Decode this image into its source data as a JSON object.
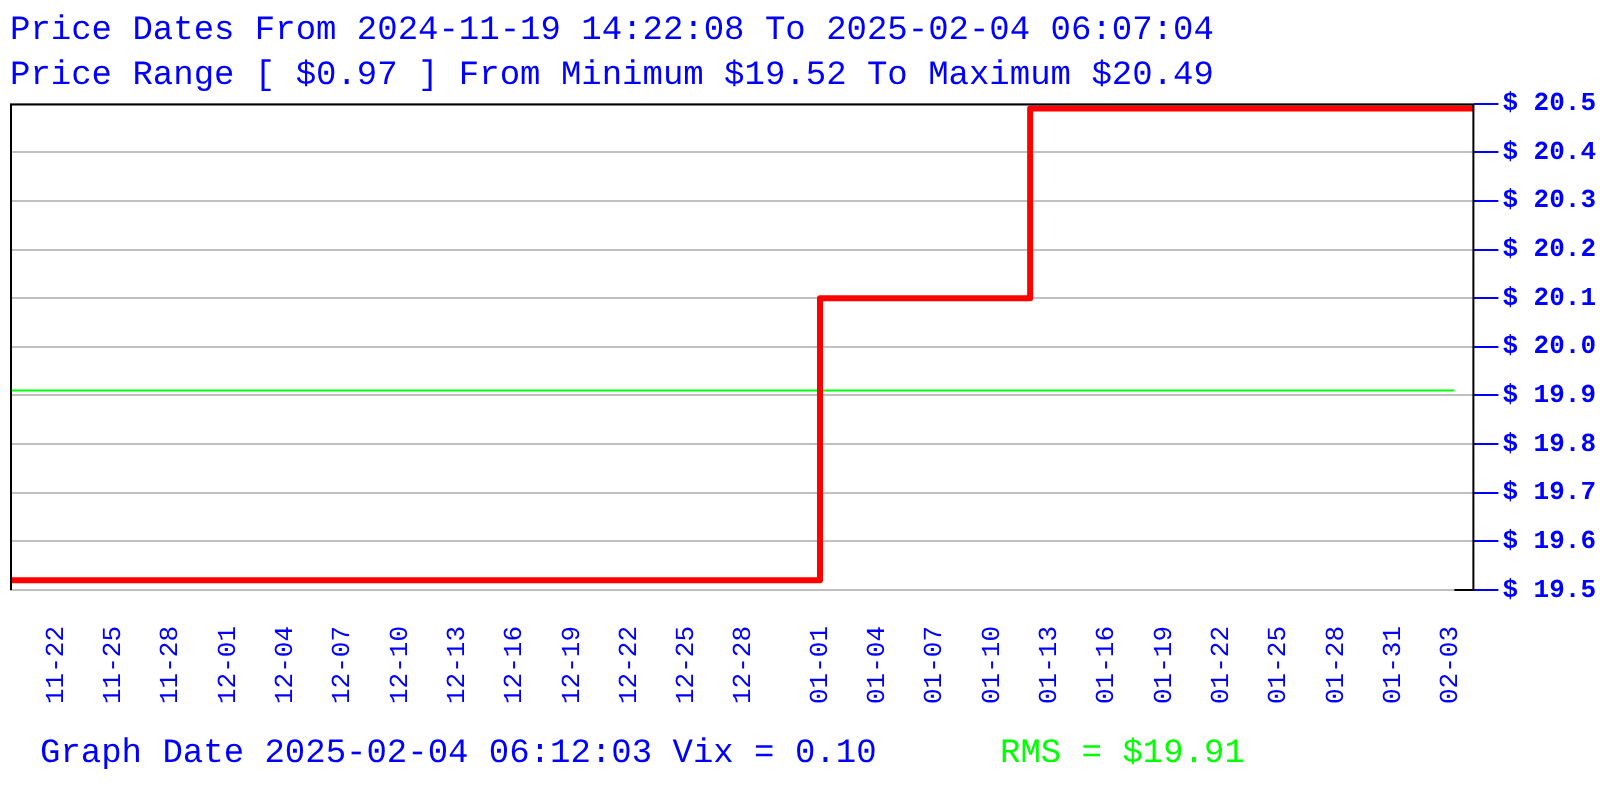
{
  "chart_data": {
    "type": "step",
    "title": "Price Dates From 2024-11-19 14:22:08 To 2025-02-04 06:07:04",
    "subtitle": "Price Range [ $0.97 ] From Minimum $19.52 To Maximum $20.49",
    "x": [
      "2024-11-19T14:22:08",
      "2025-01-01",
      "2025-01-12",
      "2025-02-04T06:07:04"
    ],
    "series": [
      {
        "color": "#ff0000",
        "values": [
          19.52,
          20.1,
          20.49,
          20.49
        ]
      }
    ],
    "xlim": [
      "2024-11-19T14:22:08",
      "2025-02-04T06:07:04"
    ],
    "xticks": [
      {
        "value": "2024-11-22",
        "label": "11-22"
      },
      {
        "value": "2024-11-25",
        "label": "11-25"
      },
      {
        "value": "2024-11-28",
        "label": "11-28"
      },
      {
        "value": "2024-12-01",
        "label": "12-01"
      },
      {
        "value": "2024-12-04",
        "label": "12-04"
      },
      {
        "value": "2024-12-07",
        "label": "12-07"
      },
      {
        "value": "2024-12-10",
        "label": "12-10"
      },
      {
        "value": "2024-12-13",
        "label": "12-13"
      },
      {
        "value": "2024-12-16",
        "label": "12-16"
      },
      {
        "value": "2024-12-19",
        "label": "12-19"
      },
      {
        "value": "2024-12-22",
        "label": "12-22"
      },
      {
        "value": "2024-12-25",
        "label": "12-25"
      },
      {
        "value": "2024-12-28",
        "label": "12-28"
      },
      {
        "value": "2025-01-01",
        "label": "01-01"
      },
      {
        "value": "2025-01-04",
        "label": "01-04"
      },
      {
        "value": "2025-01-07",
        "label": "01-07"
      },
      {
        "value": "2025-01-10",
        "label": "01-10"
      },
      {
        "value": "2025-01-13",
        "label": "01-13"
      },
      {
        "value": "2025-01-16",
        "label": "01-16"
      },
      {
        "value": "2025-01-19",
        "label": "01-19"
      },
      {
        "value": "2025-01-22",
        "label": "01-22"
      },
      {
        "value": "2025-01-25",
        "label": "01-25"
      },
      {
        "value": "2025-01-28",
        "label": "01-28"
      },
      {
        "value": "2025-01-31",
        "label": "01-31"
      },
      {
        "value": "2025-02-03",
        "label": "02-03"
      }
    ],
    "ylim": [
      19.5,
      20.5
    ],
    "yticks": [
      {
        "value": 19.5,
        "label": "$ 19.5"
      },
      {
        "value": 19.6,
        "label": "$ 19.6"
      },
      {
        "value": 19.7,
        "label": "$ 19.7"
      },
      {
        "value": 19.8,
        "label": "$ 19.8"
      },
      {
        "value": 19.9,
        "label": "$ 19.9"
      },
      {
        "value": 20.0,
        "label": "$ 20.0"
      },
      {
        "value": 20.1,
        "label": "$ 20.1"
      },
      {
        "value": 20.2,
        "label": "$ 20.2"
      },
      {
        "value": 20.3,
        "label": "$ 20.3"
      },
      {
        "value": 20.4,
        "label": "$ 20.4"
      },
      {
        "value": 20.5,
        "label": "$ 20.5"
      }
    ],
    "ref_lines": [
      {
        "axis": "y",
        "value": 19.91,
        "label": "RMS = $19.91",
        "color": "#00ff00"
      }
    ],
    "annotations": [
      "Graph Date 2025-02-04 06:12:03 Vix = 0.10"
    ],
    "grid": "y",
    "legend": false,
    "marker": "none",
    "line_style": "solid"
  }
}
